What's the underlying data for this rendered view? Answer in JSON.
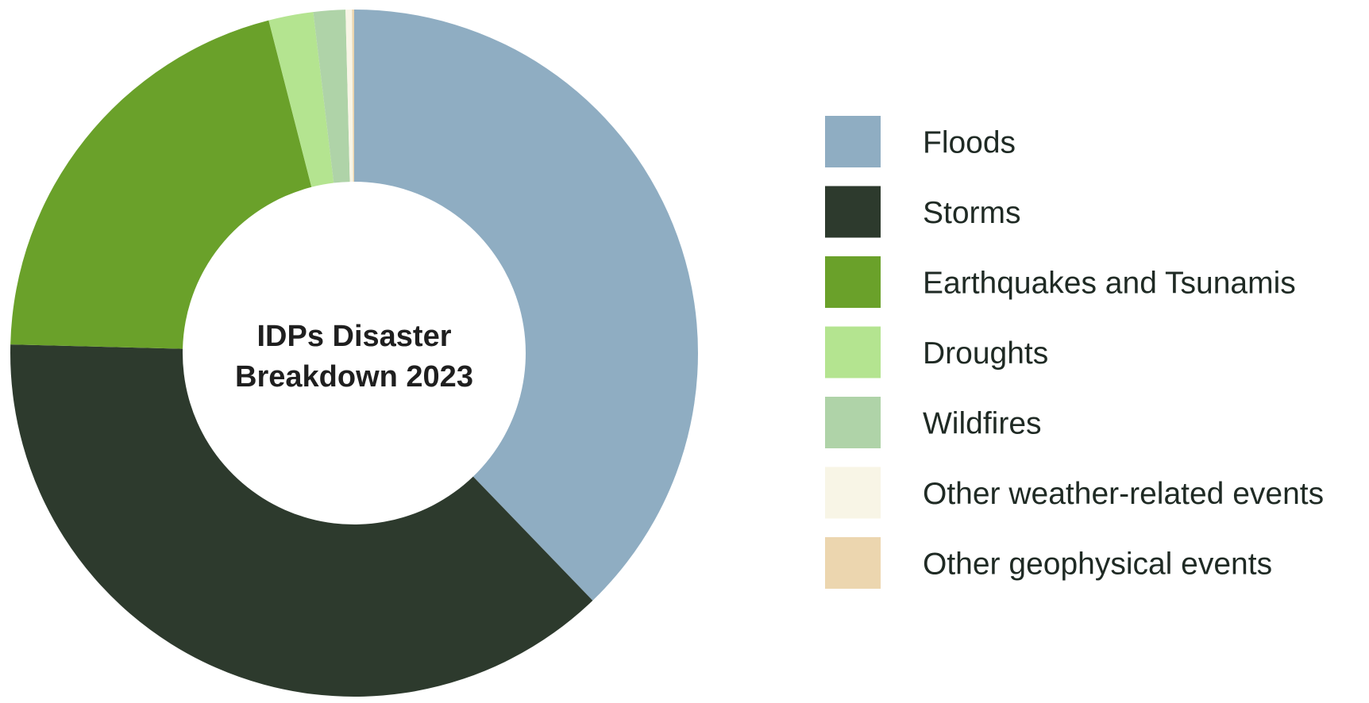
{
  "chart_data": {
    "type": "pie",
    "variant": "donut",
    "title_lines": [
      "IDPs Disaster",
      "Breakdown 2023"
    ],
    "legend_placement": "right",
    "slices": [
      {
        "label": "Floods",
        "value": 37.8,
        "color": "#8fadc2"
      },
      {
        "label": "Storms",
        "value": 37.6,
        "color": "#2d3a2d"
      },
      {
        "label": "Earthquakes and Tsunamis",
        "value": 20.6,
        "color": "#6aa12a"
      },
      {
        "label": "Droughts",
        "value": 2.1,
        "color": "#b4e490"
      },
      {
        "label": "Wildfires",
        "value": 1.5,
        "color": "#afd3a8"
      },
      {
        "label": "Other weather-related events",
        "value": 0.3,
        "color": "#f8f5e6"
      },
      {
        "label": "Other geophysical events",
        "value": 0.1,
        "color": "#ecd6af"
      }
    ]
  }
}
